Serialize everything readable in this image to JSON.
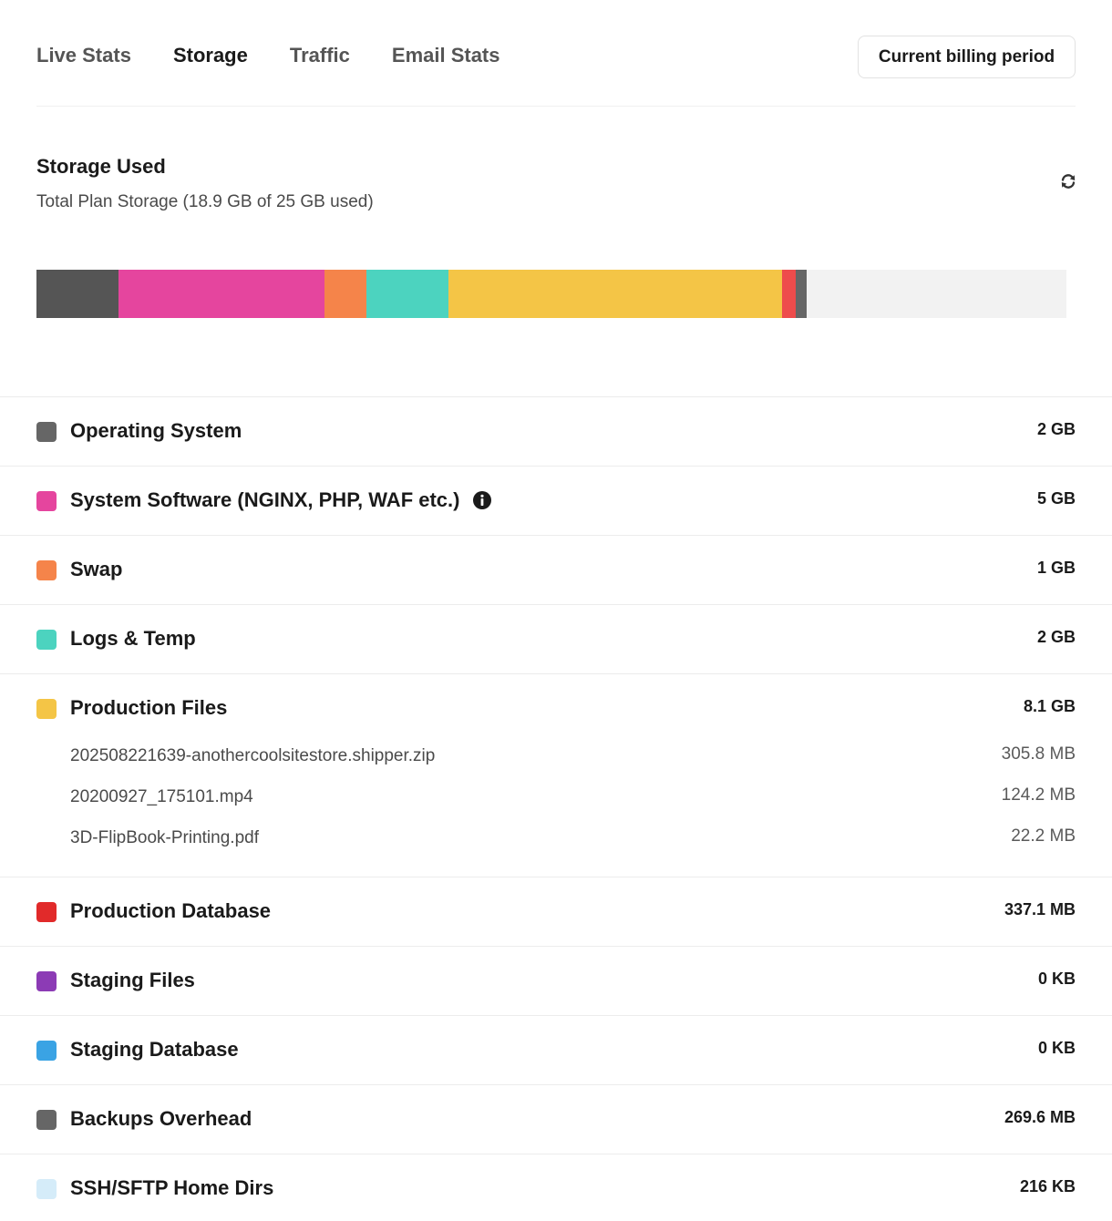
{
  "tabs": [
    {
      "label": "Live Stats",
      "active": false
    },
    {
      "label": "Storage",
      "active": true
    },
    {
      "label": "Traffic",
      "active": false
    },
    {
      "label": "Email Stats",
      "active": false
    }
  ],
  "billing_button": "Current billing period",
  "storage": {
    "title": "Storage Used",
    "subtitle": "Total Plan Storage (18.9 GB of 25 GB used)",
    "refresh_icon": "refresh-icon"
  },
  "bar": {
    "total_gb": 25,
    "segments": [
      {
        "name": "Operating System",
        "gb": 2,
        "color": "#555555"
      },
      {
        "name": "System Software",
        "gb": 5,
        "color": "#e5459e"
      },
      {
        "name": "Swap",
        "gb": 1,
        "color": "#f5844a"
      },
      {
        "name": "Logs & Temp",
        "gb": 2,
        "color": "#4cd3bf"
      },
      {
        "name": "Production Files",
        "gb": 8.1,
        "color": "#f4c546"
      },
      {
        "name": "Production Database",
        "gb": 0.3371,
        "color": "#ee4c4c"
      },
      {
        "name": "Backups Overhead",
        "gb": 0.2696,
        "color": "#666666"
      }
    ]
  },
  "categories": [
    {
      "label": "Operating System",
      "value": "2 GB",
      "color": "#666666"
    },
    {
      "label": "System Software (NGINX, PHP, WAF etc.)",
      "value": "5 GB",
      "color": "#e5459e",
      "info_icon": "info-icon"
    },
    {
      "label": "Swap",
      "value": "1 GB",
      "color": "#f5844a"
    },
    {
      "label": "Logs & Temp",
      "value": "2 GB",
      "color": "#4cd3bf"
    },
    {
      "label": "Production Files",
      "value": "8.1 GB",
      "color": "#f4c546",
      "files": [
        {
          "name": "202508221639-anothercoolsitestore.shipper.zip",
          "size": "305.8 MB"
        },
        {
          "name": "20200927_175101.mp4",
          "size": "124.2 MB"
        },
        {
          "name": "3D-FlipBook-Printing.pdf",
          "size": "22.2 MB"
        }
      ]
    },
    {
      "label": "Production Database",
      "value": "337.1 MB",
      "color": "#e12a2a"
    },
    {
      "label": "Staging Files",
      "value": "0 KB",
      "color": "#8c3bb5"
    },
    {
      "label": "Staging Database",
      "value": "0 KB",
      "color": "#3aa3e4"
    },
    {
      "label": "Backups Overhead",
      "value": "269.6 MB",
      "color": "#666666"
    },
    {
      "label": "SSH/SFTP Home Dirs",
      "value": "216 KB",
      "color": "#d5ecf9"
    }
  ]
}
